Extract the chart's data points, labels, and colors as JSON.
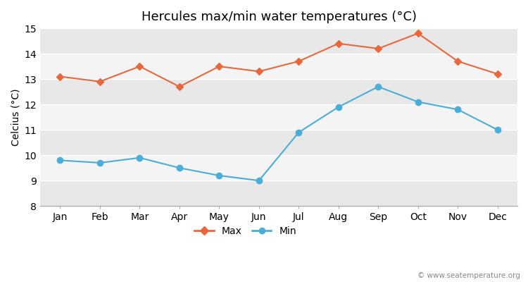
{
  "months": [
    "Jan",
    "Feb",
    "Mar",
    "Apr",
    "May",
    "Jun",
    "Jul",
    "Aug",
    "Sep",
    "Oct",
    "Nov",
    "Dec"
  ],
  "max_temps": [
    13.1,
    12.9,
    13.5,
    12.7,
    13.5,
    13.3,
    13.7,
    14.4,
    14.2,
    14.8,
    13.7,
    13.2
  ],
  "min_temps": [
    9.8,
    9.7,
    9.9,
    9.5,
    9.2,
    9.0,
    10.9,
    11.9,
    12.7,
    12.1,
    11.8,
    11.0
  ],
  "max_color": "#e8673c",
  "min_color": "#4aaed9",
  "bg_color": "#ffffff",
  "band_colors": [
    "#e8e8e8",
    "#f4f4f4"
  ],
  "title": "Hercules max/min water temperatures (°C)",
  "ylabel": "Celcius (°C)",
  "ylim": [
    8,
    15
  ],
  "yticks": [
    8,
    9,
    10,
    11,
    12,
    13,
    14,
    15
  ],
  "title_fontsize": 13,
  "label_fontsize": 10,
  "tick_fontsize": 10,
  "watermark": "© www.seatemperature.org"
}
